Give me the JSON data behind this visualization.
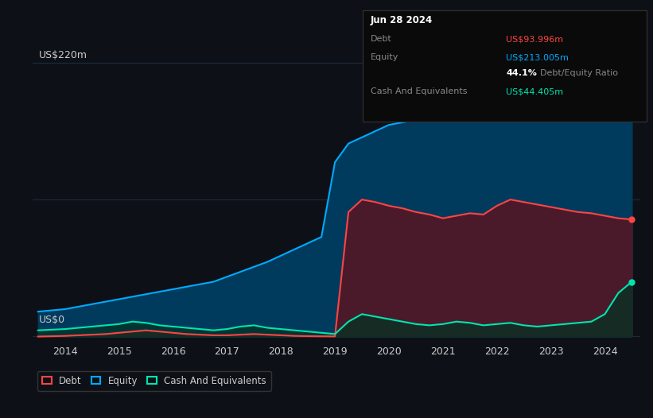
{
  "bg_color": "#0d1117",
  "plot_bg_color": "#0d1117",
  "equity_color": "#00aaff",
  "debt_color": "#ff4444",
  "cash_color": "#00e5b0",
  "grid_color": "#1e2a3a",
  "text_color": "#cccccc",
  "ylabel_text": "US$220m",
  "ylabel0_text": "US$0",
  "x_ticks": [
    2014,
    2015,
    2016,
    2017,
    2018,
    2019,
    2020,
    2021,
    2022,
    2023,
    2024
  ],
  "tooltip_date": "Jun 28 2024",
  "tooltip_debt_label": "Debt",
  "tooltip_debt_value": "US$93.996m",
  "tooltip_equity_label": "Equity",
  "tooltip_equity_value": "US$213.005m",
  "tooltip_ratio_bold": "44.1%",
  "tooltip_ratio_normal": "Debt/Equity Ratio",
  "tooltip_cash_label": "Cash And Equivalents",
  "tooltip_cash_value": "US$44.405m",
  "legend_items": [
    "Debt",
    "Equity",
    "Cash And Equivalents"
  ],
  "ymax": 220,
  "equity_data": {
    "x": [
      2013.5,
      2014.0,
      2014.25,
      2014.5,
      2014.75,
      2015.0,
      2015.25,
      2015.5,
      2015.75,
      2016.0,
      2016.25,
      2016.5,
      2016.75,
      2017.0,
      2017.25,
      2017.5,
      2017.75,
      2018.0,
      2018.25,
      2018.5,
      2018.75,
      2019.0,
      2019.25,
      2019.5,
      2019.75,
      2020.0,
      2020.25,
      2020.5,
      2020.75,
      2021.0,
      2021.25,
      2021.5,
      2021.75,
      2022.0,
      2022.25,
      2022.5,
      2022.75,
      2023.0,
      2023.25,
      2023.5,
      2023.75,
      2024.0,
      2024.25,
      2024.5
    ],
    "y": [
      20,
      22,
      24,
      26,
      28,
      30,
      32,
      34,
      36,
      38,
      40,
      42,
      44,
      48,
      52,
      56,
      60,
      65,
      70,
      75,
      80,
      140,
      155,
      160,
      165,
      170,
      172,
      174,
      175,
      180,
      182,
      185,
      188,
      190,
      192,
      193,
      195,
      196,
      198,
      200,
      205,
      208,
      210,
      213
    ]
  },
  "debt_data": {
    "x": [
      2013.5,
      2014.0,
      2014.25,
      2014.5,
      2014.75,
      2015.0,
      2015.25,
      2015.5,
      2015.75,
      2016.0,
      2016.25,
      2016.5,
      2016.75,
      2017.0,
      2017.25,
      2017.5,
      2017.75,
      2018.0,
      2018.25,
      2018.5,
      2018.75,
      2019.0,
      2019.25,
      2019.5,
      2019.75,
      2020.0,
      2020.25,
      2020.5,
      2020.75,
      2021.0,
      2021.25,
      2021.5,
      2021.75,
      2022.0,
      2022.25,
      2022.5,
      2022.75,
      2023.0,
      2023.25,
      2023.5,
      2023.75,
      2024.0,
      2024.25,
      2024.5
    ],
    "y": [
      0,
      0.5,
      1,
      1.5,
      2,
      3,
      4,
      5,
      4,
      3,
      2,
      1.5,
      1,
      1,
      1.5,
      2,
      1.5,
      1,
      0.5,
      0.3,
      0.2,
      0.1,
      100,
      110,
      108,
      105,
      103,
      100,
      98,
      95,
      97,
      99,
      98,
      105,
      110,
      108,
      106,
      104,
      102,
      100,
      99,
      97,
      95,
      94
    ]
  },
  "cash_data": {
    "x": [
      2013.5,
      2014.0,
      2014.25,
      2014.5,
      2014.75,
      2015.0,
      2015.25,
      2015.5,
      2015.75,
      2016.0,
      2016.25,
      2016.5,
      2016.75,
      2017.0,
      2017.25,
      2017.5,
      2017.75,
      2018.0,
      2018.25,
      2018.5,
      2018.75,
      2019.0,
      2019.25,
      2019.5,
      2019.75,
      2020.0,
      2020.25,
      2020.5,
      2020.75,
      2021.0,
      2021.25,
      2021.5,
      2021.75,
      2022.0,
      2022.25,
      2022.5,
      2022.75,
      2023.0,
      2023.25,
      2023.5,
      2023.75,
      2024.0,
      2024.25,
      2024.5
    ],
    "y": [
      5,
      6,
      7,
      8,
      9,
      10,
      12,
      11,
      9,
      8,
      7,
      6,
      5,
      6,
      8,
      9,
      7,
      6,
      5,
      4,
      3,
      2,
      12,
      18,
      16,
      14,
      12,
      10,
      9,
      10,
      12,
      11,
      9,
      10,
      11,
      9,
      8,
      9,
      10,
      11,
      12,
      18,
      35,
      44
    ]
  }
}
